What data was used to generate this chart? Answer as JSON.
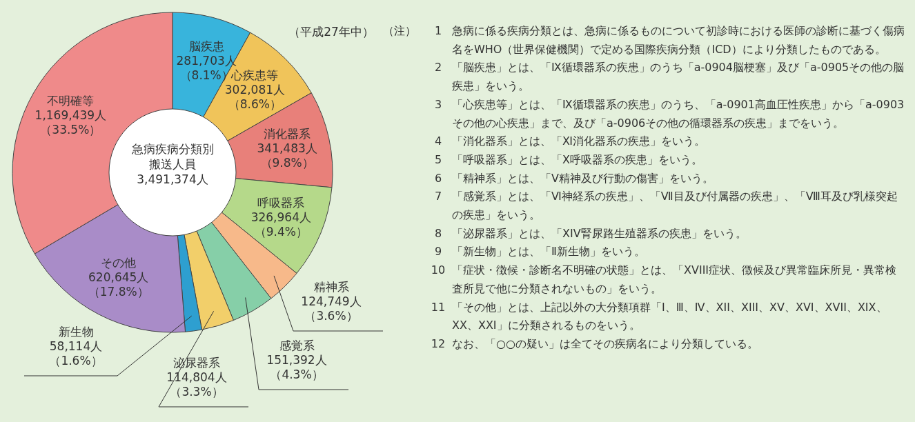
{
  "chart_data": {
    "type": "donut",
    "title": "急病疾病分類別搬送人員3,491,374人",
    "subtitle": "（平成27年中）",
    "categories": [
      "脳疾患",
      "心疾患等",
      "消化器系",
      "呼吸器系",
      "精神系",
      "感覚系",
      "泌尿器系",
      "新生物",
      "その他",
      "不明確等"
    ],
    "values": [
      281703,
      302081,
      341483,
      326964,
      124749,
      151392,
      114804,
      58114,
      620645,
      1169439
    ],
    "colors": [
      "#38b4dc",
      "#f0c45a",
      "#e8807a",
      "#b5d98a",
      "#f7b98a",
      "#86cfa8",
      "#f2cf6a",
      "#2e9fd0",
      "#a98cc8",
      "#ef8a8a"
    ],
    "value_labels": [
      "281,703人（8.1%）",
      "302,081人（8.6%）",
      "341,483人（9.8%）",
      "326,964人（9.4%）",
      "124,749人（3.6%）",
      "151,392人（4.3%）",
      "114,804人（3.3%）",
      "58,114人（1.6%）",
      "620,645人（17.8%）",
      "1,169,439人（33.5%）"
    ],
    "annotations": [
      "（注）",
      "1 急病に係る疾病分類とは、急病に係るものについて初診時における医師の診断に基づく傷病名をWHO（世界保健機関）で定める国際疾病分類（ICD）により分類したものである。",
      "2 「脳疾患」とは、「Ⅸ循環器系の疾患」のうち「a-0904脳梗塞」及び「a-0905その他の脳疾患」をいう。",
      "3 「心疾患等」とは、「Ⅸ循環器系の疾患」のうち、「a-0901高血圧性疾患」から「a-0903その他の心疾患」まで、及び「a-0906その他の循環器系の疾患」までをいう。",
      "4 「消化器系」とは、「Ⅺ消化器系の疾患」をいう。",
      "5 「呼吸器系」とは、「Ⅹ呼吸器系の疾患」をいう。",
      "6 「精神系」とは、「Ⅴ精神及び行動の傷害」をいう。",
      "7 「感覚系」とは、「Ⅵ神経系の疾患」、「Ⅶ目及び付属器の疾患」、「Ⅷ耳及び乳様突起の疾患」をいう。",
      "8 「泌尿器系」とは、「XIV腎尿路生殖器系の疾患」をいう。",
      "9 「新生物」とは、「Ⅱ新生物」をいう。",
      "10 「症状・徴候・診断名不明確の状態」とは、「XVIII症状、徴候及び異常臨床所見・異常検査所見で他に分類されないもの」をいう。",
      "11 「その他」とは、上記以外の大分類項群「Ⅰ、Ⅲ、Ⅳ、XII、XIII、XV、XVI、XVII、XIX、XX、XXI」に分類されるものをいう。",
      "12 なお、「○○の疑い」は全てその疾病名により分類している。"
    ]
  }
}
